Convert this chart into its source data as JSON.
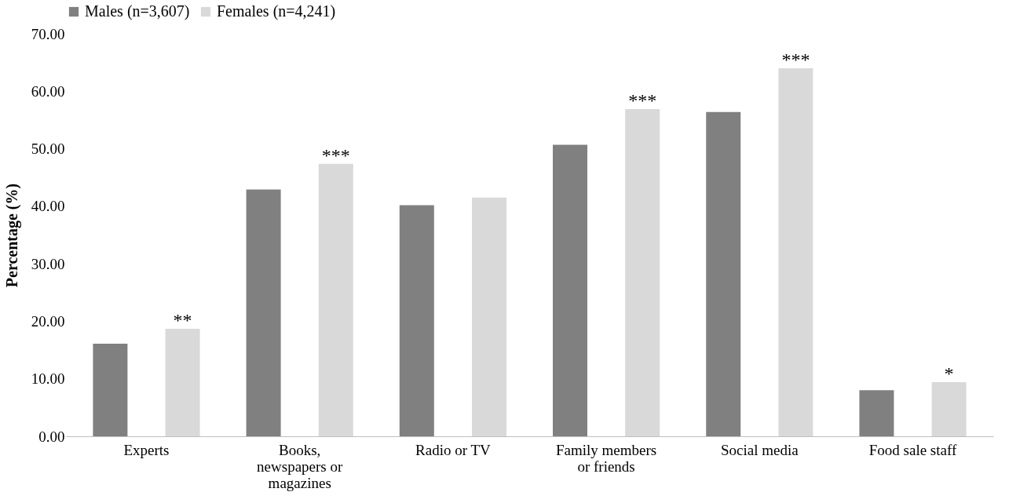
{
  "chart_data": {
    "type": "bar",
    "ylabel": "Percentage (%)",
    "categories": [
      "Experts",
      "Books,\nnewspapers or\nmagazines",
      "Radio or TV",
      "Family members\nor friends",
      "Social media",
      "Food sale staff"
    ],
    "series": [
      {
        "name": "Males (n=3,607)",
        "color": "#808080",
        "values": [
          16.1,
          42.9,
          40.2,
          50.7,
          56.4,
          8.0
        ]
      },
      {
        "name": "Females (n=4,241)",
        "color": "#d9d9d9",
        "values": [
          18.7,
          47.4,
          41.5,
          56.9,
          64.0,
          9.4
        ],
        "value_labels": [
          "**",
          "***",
          null,
          "***",
          "***",
          "*"
        ]
      }
    ],
    "ylim": [
      0,
      70
    ],
    "yticks": [
      {
        "value": 0,
        "label": "0.00"
      },
      {
        "value": 10,
        "label": "10.00"
      },
      {
        "value": 20,
        "label": "20.00"
      },
      {
        "value": 30,
        "label": "30.00"
      },
      {
        "value": 40,
        "label": "40.00"
      },
      {
        "value": 50,
        "label": "50.00"
      },
      {
        "value": 60,
        "label": "60.00"
      },
      {
        "value": 70,
        "label": "70.00"
      }
    ],
    "grid": false,
    "legend": "top"
  }
}
